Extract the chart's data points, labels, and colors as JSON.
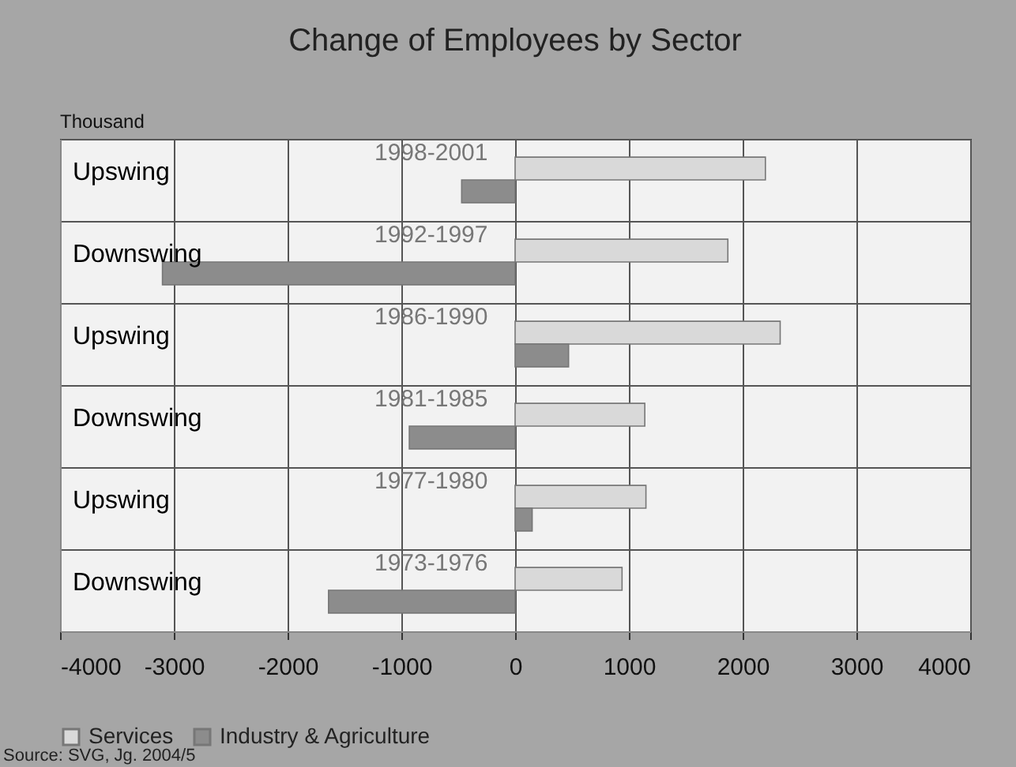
{
  "chart_data": {
    "type": "bar",
    "orientation": "horizontal",
    "title": "Change of Employees by Sector",
    "xlabel": "Thousand",
    "categories": [
      "1998-2001",
      "1992-1997",
      "1986-1990",
      "1981-1985",
      "1977-1980",
      "1973-1976"
    ],
    "series": [
      {
        "name": "Services",
        "color": "#d9d9d9",
        "values": [
          2200,
          1870,
          2330,
          1140,
          1150,
          940
        ]
      },
      {
        "name": "Industry & Agriculture",
        "color": "#8c8c8c",
        "values": [
          -470,
          -3100,
          470,
          -930,
          150,
          -1640
        ]
      }
    ],
    "xlim": [
      -4000,
      4000
    ],
    "xticks": [
      -4000,
      -3000,
      -2000,
      -1000,
      0,
      1000,
      2000,
      3000,
      4000
    ],
    "grid": true,
    "legend": "bottom",
    "annotations": [
      "Upswing",
      "Downswing",
      "Upswing",
      "Downswing",
      "Upswing",
      "Downswing",
      "Source: SVG, Jg. 2004/5"
    ]
  }
}
